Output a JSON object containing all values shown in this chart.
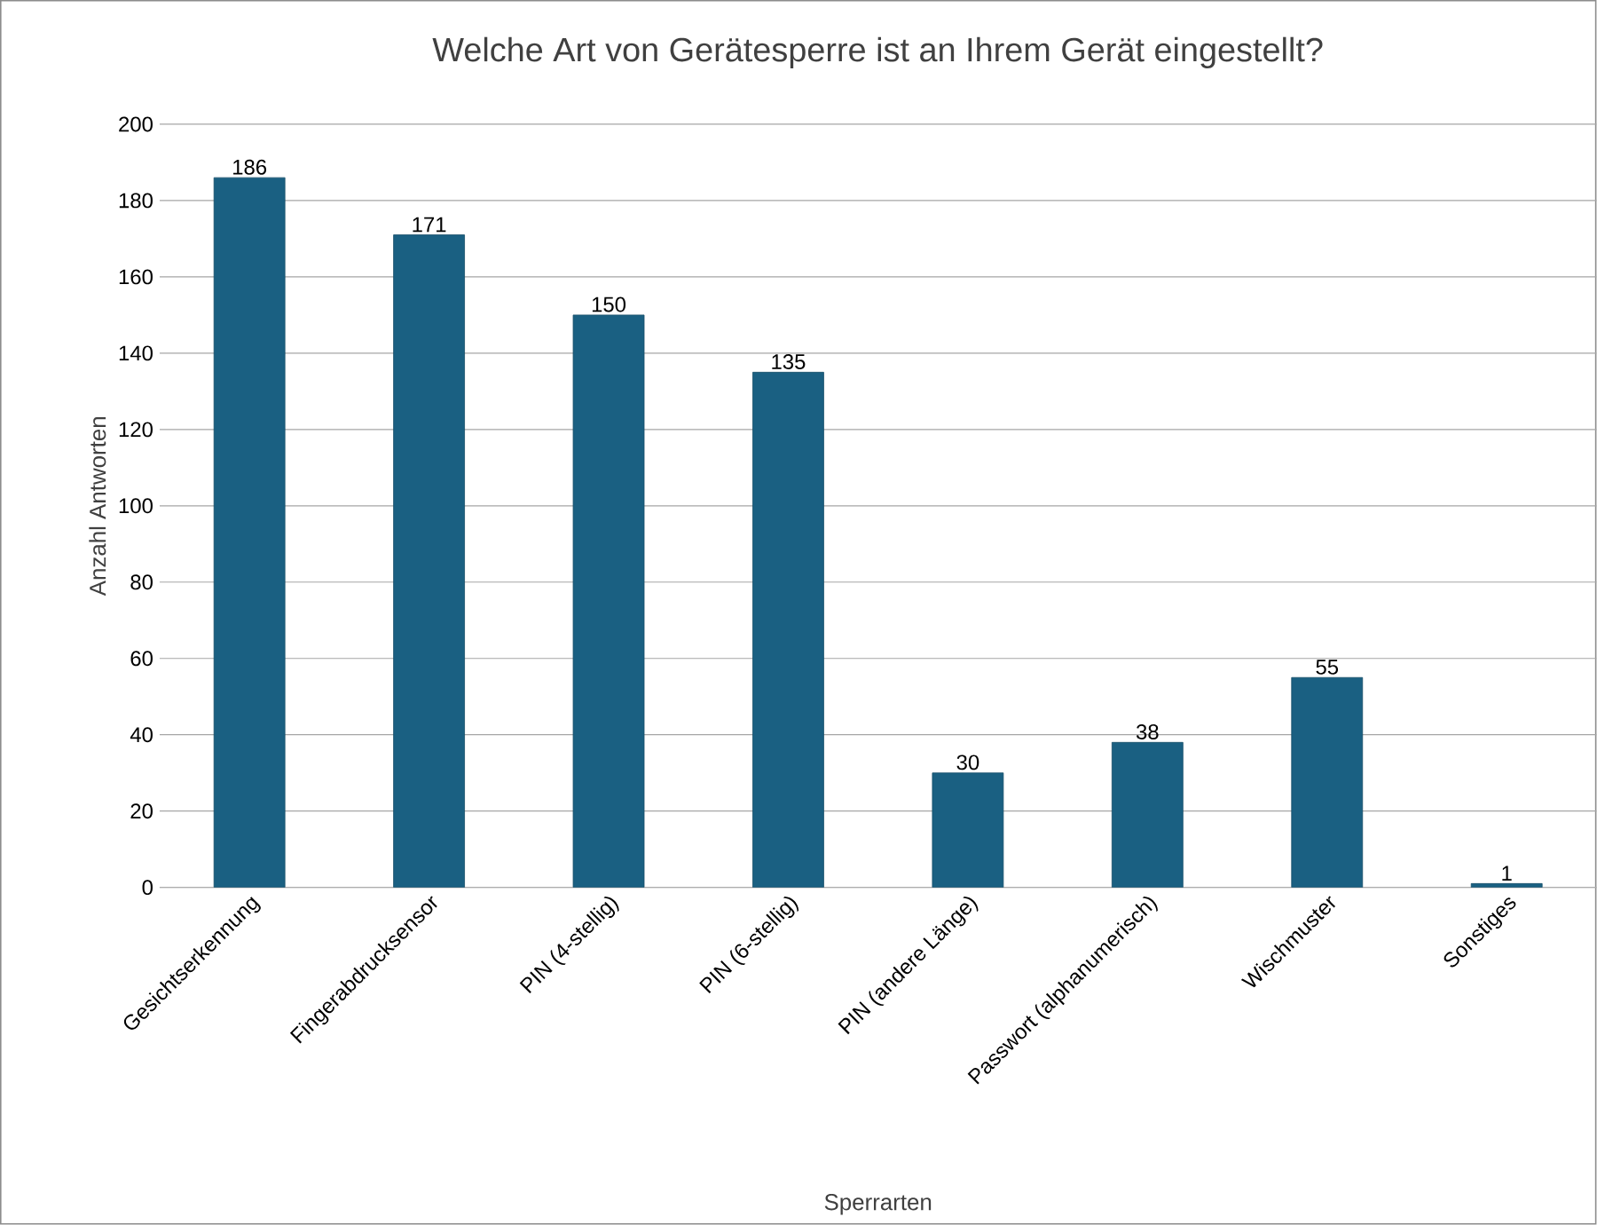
{
  "chart_data": {
    "type": "bar",
    "title": "Welche Art von Gerätesperre ist an Ihrem Gerät eingestellt?",
    "xlabel": "Sperrarten",
    "ylabel": "Anzahl Antworten",
    "categories": [
      "Gesichtserkennung",
      "Fingerabdrucksensor",
      "PIN (4-stellig)",
      "PIN (6-stellig)",
      "PIN (andere Länge)",
      "Passwort (alphanumerisch)",
      "Wischmuster",
      "Sonstiges"
    ],
    "values": [
      186,
      171,
      150,
      135,
      30,
      38,
      55,
      1
    ],
    "color": "#1a6082",
    "ylim": [
      0,
      200
    ],
    "yticks": [
      0,
      20,
      40,
      60,
      80,
      100,
      120,
      140,
      160,
      180,
      200
    ],
    "grid": "y",
    "data_labels": true
  }
}
